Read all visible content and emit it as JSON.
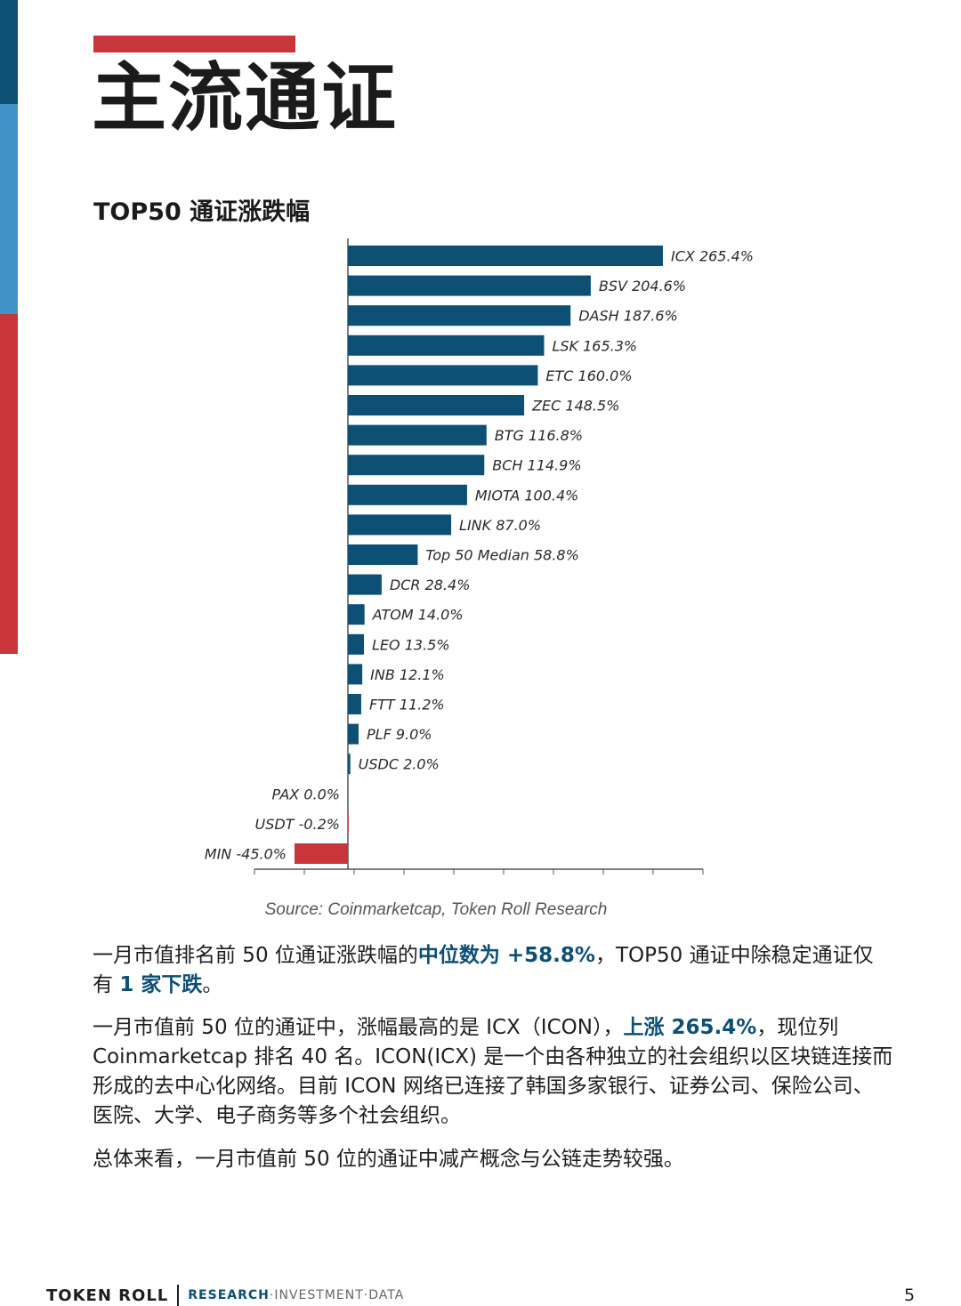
{
  "page_title": "主流通证",
  "colors": {
    "navy": "#0e4f74",
    "light_blue": "#4192c6",
    "red": "#c8353a"
  },
  "chart_data": {
    "type": "bar",
    "orientation": "horizontal",
    "title": "TOP50 通证涨跌幅",
    "source": "Source: Coinmarketcap, Token Roll Research",
    "unit": "%",
    "xlim": [
      -45,
      265.4
    ],
    "categories": [
      "ICX",
      "BSV",
      "DASH",
      "LSK",
      "ETC",
      "ZEC",
      "BTG",
      "BCH",
      "MIOTA",
      "LINK",
      "Top 50 Median",
      "DCR",
      "ATOM",
      "LEO",
      "INB",
      "FTT",
      "PLF",
      "USDC",
      "PAX",
      "USDT",
      "MIN"
    ],
    "values": [
      265.4,
      204.6,
      187.6,
      165.3,
      160.0,
      148.5,
      116.8,
      114.9,
      100.4,
      87.0,
      58.8,
      28.4,
      14.0,
      13.5,
      12.1,
      11.2,
      9.0,
      2.0,
      0.0,
      -0.2,
      -45.0
    ],
    "labels": [
      "ICX 265.4%",
      "BSV 204.6%",
      "DASH 187.6%",
      "LSK 165.3%",
      "ETC 160.0%",
      "ZEC 148.5%",
      "BTG 116.8%",
      "BCH 114.9%",
      "MIOTA 100.4%",
      "LINK 87.0%",
      "Top 50 Median 58.8%",
      "DCR 28.4%",
      "ATOM 14.0%",
      "LEO 13.5%",
      "INB 12.1%",
      "FTT 11.2%",
      "PLF 9.0%",
      "USDC 2.0%",
      "PAX 0.0%",
      "USDT -0.2%",
      "MIN -45.0%"
    ],
    "positive_color": "#0e4f74",
    "negative_color": "#c8353a",
    "grid": false
  },
  "paragraphs": {
    "p1": {
      "a": "一月市值排名前 50 位通证涨跌幅的",
      "b": "中位数为 +58.8%",
      "c": "，TOP50 通证中除稳定通证仅有 ",
      "d": "1 家下跌",
      "e": "。"
    },
    "p2": {
      "a": "一月市值前 50 位的通证中，涨幅最高的是 ICX（ICON），",
      "b": "上涨 265.4%",
      "c": "，现位列 Coinmarketcap 排名 40 名。ICON(ICX) 是一个由各种独立的社会组织以区块链连接而形成的去中心化网络。目前 ICON 网络已连接了韩国多家银行、证券公司、保险公司、医院、大学、电子商务等多个社会组织。"
    },
    "p3": "总体来看，一月市值前 50 位的通证中减产概念与公链走势较强。"
  },
  "footer": {
    "brand": "TOKEN ROLL",
    "research": "RESEARCH",
    "sep": " · ",
    "investment": "INVESTMENT",
    "data_label": "DATA",
    "page_number": "5"
  }
}
